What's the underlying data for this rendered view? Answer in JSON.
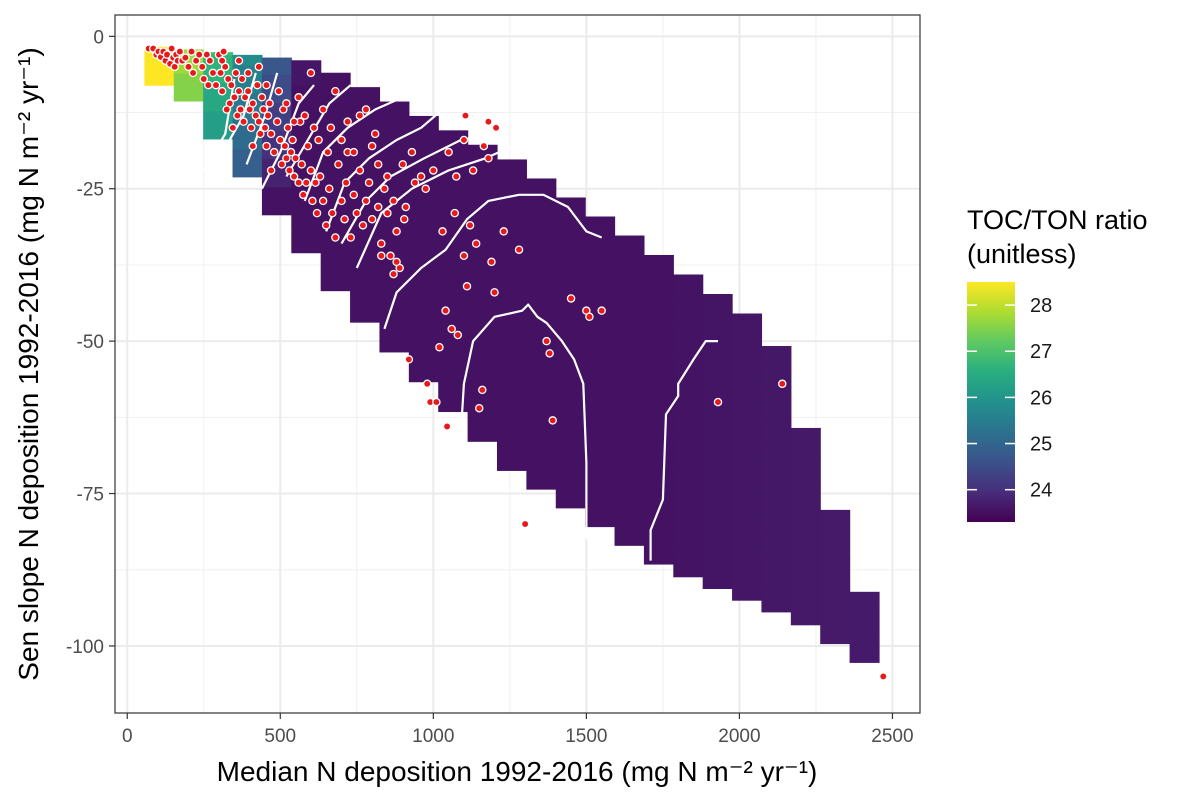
{
  "chart_data": {
    "type": "heatmap",
    "xlabel": "Median N deposition 1992-2016 (mg N m⁻² yr⁻¹)",
    "ylabel": "Sen slope N deposition 1992-2016 (mg N m⁻² yr⁻¹)",
    "xlim": [
      -40,
      2590
    ],
    "ylim": [
      -111,
      3.5
    ],
    "x_ticks": [
      0,
      500,
      1000,
      1500,
      2000,
      2500
    ],
    "y_ticks": [
      0,
      -25,
      -50,
      -75,
      -100
    ],
    "x_tick_labels": [
      "0",
      "500",
      "1000",
      "1500",
      "2000",
      "2500"
    ],
    "y_tick_labels": [
      "0",
      "-25",
      "-50",
      "-75",
      "-100"
    ],
    "grid": true,
    "colorscale": "viridis",
    "fill_range": [
      23.3,
      28.5
    ],
    "legend": {
      "title_lines": [
        "TOC/TON ratio",
        "(unitless)"
      ],
      "ticks": [
        24,
        25,
        26,
        27,
        28
      ],
      "tick_labels": [
        "24",
        "25",
        "26",
        "27",
        "28"
      ],
      "placement": "right"
    },
    "surface": {
      "x_step": 96,
      "y_step": 4.6,
      "upper_boundary": [
        [
          60,
          -1.5
        ],
        [
          600,
          -4
        ],
        [
          1250,
          -20
        ],
        [
          1650,
          -33
        ],
        [
          2100,
          -48
        ],
        [
          2450,
          -97
        ]
      ],
      "lower_boundary": [
        [
          160,
          -8
        ],
        [
          700,
          -43
        ],
        [
          1250,
          -71
        ],
        [
          1750,
          -87
        ],
        [
          2200,
          -96
        ],
        [
          2480,
          -105
        ]
      ]
    },
    "contours": [
      [
        [
          250,
          -22
        ],
        [
          320,
          -16
        ],
        [
          350,
          -7
        ]
      ],
      [
        [
          300,
          -20
        ],
        [
          380,
          -13
        ],
        [
          420,
          -6
        ]
      ],
      [
        [
          390,
          -21
        ],
        [
          450,
          -13
        ],
        [
          490,
          -6
        ]
      ],
      [
        [
          440,
          -25
        ],
        [
          500,
          -19
        ],
        [
          560,
          -11
        ],
        [
          610,
          -8
        ]
      ],
      [
        [
          520,
          -23
        ],
        [
          590,
          -17
        ],
        [
          660,
          -11
        ],
        [
          730,
          -8
        ]
      ],
      [
        [
          580,
          -27
        ],
        [
          640,
          -19
        ],
        [
          720,
          -15
        ],
        [
          810,
          -12
        ],
        [
          900,
          -10
        ]
      ],
      [
        [
          650,
          -32
        ],
        [
          710,
          -24
        ],
        [
          790,
          -20
        ],
        [
          880,
          -17
        ],
        [
          960,
          -15
        ],
        [
          1030,
          -12
        ]
      ],
      [
        [
          700,
          -34
        ],
        [
          780,
          -27
        ],
        [
          860,
          -23
        ],
        [
          970,
          -20
        ],
        [
          1090,
          -17
        ],
        [
          1200,
          -16
        ]
      ],
      [
        [
          750,
          -38
        ],
        [
          830,
          -29
        ],
        [
          930,
          -25
        ],
        [
          1050,
          -22
        ],
        [
          1170,
          -20
        ],
        [
          1260,
          -18
        ]
      ],
      [
        [
          840,
          -48
        ],
        [
          880,
          -42
        ],
        [
          960,
          -38
        ],
        [
          1040,
          -35
        ],
        [
          1110,
          -30
        ],
        [
          1180,
          -27
        ],
        [
          1280,
          -26
        ],
        [
          1360,
          -26
        ],
        [
          1440,
          -28
        ],
        [
          1500,
          -32
        ],
        [
          1550,
          -33
        ]
      ],
      [
        [
          1090,
          -65
        ],
        [
          1100,
          -57
        ],
        [
          1130,
          -50
        ],
        [
          1200,
          -46
        ],
        [
          1290,
          -45
        ],
        [
          1310,
          -44
        ],
        [
          1340,
          -46
        ],
        [
          1370,
          -47
        ],
        [
          1420,
          -50
        ],
        [
          1460,
          -53
        ],
        [
          1490,
          -57
        ],
        [
          1500,
          -70
        ],
        [
          1500,
          -82
        ],
        [
          1530,
          -85
        ]
      ],
      [
        [
          1710,
          -86
        ],
        [
          1710,
          -81
        ],
        [
          1750,
          -76
        ],
        [
          1760,
          -62
        ],
        [
          1800,
          -59
        ],
        [
          1800,
          -57
        ],
        [
          1850,
          -53
        ],
        [
          1890,
          -50
        ],
        [
          1930,
          -50
        ]
      ]
    ],
    "points": [
      [
        70,
        -2
      ],
      [
        85,
        -2
      ],
      [
        95,
        -3
      ],
      [
        102,
        -2.5
      ],
      [
        110,
        -3.4
      ],
      [
        118,
        -2.5
      ],
      [
        125,
        -4
      ],
      [
        130,
        -3
      ],
      [
        140,
        -4.5
      ],
      [
        145,
        -2
      ],
      [
        150,
        -3.5
      ],
      [
        155,
        -5
      ],
      [
        160,
        -3
      ],
      [
        165,
        -4
      ],
      [
        172,
        -2.5
      ],
      [
        180,
        -4
      ],
      [
        190,
        -3.5
      ],
      [
        200,
        -5
      ],
      [
        210,
        -2.5
      ],
      [
        215,
        -6
      ],
      [
        225,
        -4
      ],
      [
        235,
        -3
      ],
      [
        245,
        -5
      ],
      [
        250,
        -7
      ],
      [
        260,
        -3
      ],
      [
        265,
        -8
      ],
      [
        270,
        -4
      ],
      [
        280,
        -6
      ],
      [
        290,
        -8
      ],
      [
        300,
        -3
      ],
      [
        305,
        -6
      ],
      [
        310,
        -9
      ],
      [
        315,
        -2.5
      ],
      [
        320,
        -5
      ],
      [
        330,
        -7
      ],
      [
        335,
        -11
      ],
      [
        340,
        -8
      ],
      [
        350,
        -10
      ],
      [
        355,
        -6
      ],
      [
        360,
        -13
      ],
      [
        365,
        -9
      ],
      [
        370,
        -12
      ],
      [
        375,
        -7
      ],
      [
        380,
        -14
      ],
      [
        385,
        -10
      ],
      [
        395,
        -9
      ],
      [
        400,
        -12
      ],
      [
        405,
        -15
      ],
      [
        410,
        -11
      ],
      [
        420,
        -13
      ],
      [
        425,
        -8
      ],
      [
        430,
        -14
      ],
      [
        435,
        -16
      ],
      [
        440,
        -10
      ],
      [
        445,
        -12
      ],
      [
        450,
        -15
      ],
      [
        455,
        -18
      ],
      [
        460,
        -13
      ],
      [
        465,
        -11
      ],
      [
        470,
        -16
      ],
      [
        480,
        -19
      ],
      [
        490,
        -14
      ],
      [
        500,
        -17
      ],
      [
        505,
        -21
      ],
      [
        510,
        -12
      ],
      [
        515,
        -18
      ],
      [
        520,
        -20
      ],
      [
        525,
        -15
      ],
      [
        530,
        -22
      ],
      [
        535,
        -19
      ],
      [
        540,
        -17
      ],
      [
        545,
        -23
      ],
      [
        550,
        -20
      ],
      [
        560,
        -10
      ],
      [
        565,
        -14
      ],
      [
        570,
        -21
      ],
      [
        575,
        -26
      ],
      [
        580,
        -13
      ],
      [
        585,
        -24
      ],
      [
        590,
        -18
      ],
      [
        600,
        -22
      ],
      [
        605,
        -27
      ],
      [
        610,
        -15
      ],
      [
        615,
        -24
      ],
      [
        620,
        -29
      ],
      [
        625,
        -17
      ],
      [
        630,
        -23
      ],
      [
        640,
        -27
      ],
      [
        650,
        -31
      ],
      [
        655,
        -19
      ],
      [
        660,
        -25
      ],
      [
        665,
        -15
      ],
      [
        670,
        -29
      ],
      [
        680,
        -33
      ],
      [
        690,
        -21
      ],
      [
        700,
        -27
      ],
      [
        710,
        -30
      ],
      [
        715,
        -24
      ],
      [
        720,
        -19
      ],
      [
        730,
        -33
      ],
      [
        740,
        -26
      ],
      [
        750,
        -29
      ],
      [
        760,
        -22
      ],
      [
        770,
        -31
      ],
      [
        780,
        -27
      ],
      [
        790,
        -24
      ],
      [
        800,
        -30
      ],
      [
        810,
        -16
      ],
      [
        820,
        -28
      ],
      [
        830,
        -34
      ],
      [
        840,
        -25
      ],
      [
        850,
        -29
      ],
      [
        860,
        -36
      ],
      [
        870,
        -27
      ],
      [
        880,
        -32
      ],
      [
        890,
        -38
      ],
      [
        900,
        -21
      ],
      [
        910,
        -28
      ],
      [
        920,
        -53
      ],
      [
        940,
        -24
      ],
      [
        960,
        -23
      ],
      [
        990,
        -60
      ],
      [
        1010,
        -60
      ],
      [
        1020,
        -51
      ],
      [
        1040,
        -45
      ],
      [
        1045,
        -64
      ],
      [
        1060,
        -48
      ],
      [
        1070,
        -29
      ],
      [
        1080,
        -49
      ],
      [
        1100,
        -36
      ],
      [
        1110,
        -41
      ],
      [
        1120,
        -31
      ],
      [
        1130,
        -22
      ],
      [
        1140,
        -34
      ],
      [
        1150,
        -61
      ],
      [
        1160,
        -58
      ],
      [
        1180,
        -20
      ],
      [
        1190,
        -37
      ],
      [
        1200,
        -42
      ],
      [
        1230,
        -32
      ],
      [
        1280,
        -35
      ],
      [
        1300,
        -80
      ],
      [
        1370,
        -50
      ],
      [
        1380,
        -52
      ],
      [
        1390,
        -63
      ],
      [
        1450,
        -43
      ],
      [
        1500,
        -45
      ],
      [
        1510,
        -46
      ],
      [
        1550,
        -45
      ],
      [
        1930,
        -60
      ],
      [
        2140,
        -57
      ],
      [
        2470,
        -105
      ],
      [
        310,
        -4
      ],
      [
        325,
        -12
      ],
      [
        345,
        -15
      ],
      [
        365,
        -4
      ],
      [
        395,
        -6
      ],
      [
        410,
        -18
      ],
      [
        430,
        -5
      ],
      [
        455,
        -8
      ],
      [
        470,
        -22
      ],
      [
        495,
        -9
      ],
      [
        520,
        -11
      ],
      [
        545,
        -14
      ],
      [
        560,
        -24
      ],
      [
        600,
        -6
      ],
      [
        640,
        -12
      ],
      [
        680,
        -9
      ],
      [
        700,
        -17
      ],
      [
        720,
        -14
      ],
      [
        740,
        -19
      ],
      [
        760,
        -13
      ],
      [
        780,
        -12
      ],
      [
        800,
        -18
      ],
      [
        820,
        -21
      ],
      [
        850,
        -23
      ],
      [
        880,
        -37
      ],
      [
        905,
        -30
      ],
      [
        930,
        -19
      ],
      [
        975,
        -25
      ],
      [
        1000,
        -22
      ],
      [
        1030,
        -32
      ],
      [
        1050,
        -19
      ],
      [
        1075,
        -23
      ],
      [
        1100,
        -17
      ],
      [
        1165,
        -18
      ],
      [
        1205,
        -15
      ],
      [
        1180,
        -14
      ],
      [
        1105,
        -13
      ],
      [
        830,
        -36
      ],
      [
        870,
        -39
      ],
      [
        980,
        -57
      ]
    ]
  }
}
